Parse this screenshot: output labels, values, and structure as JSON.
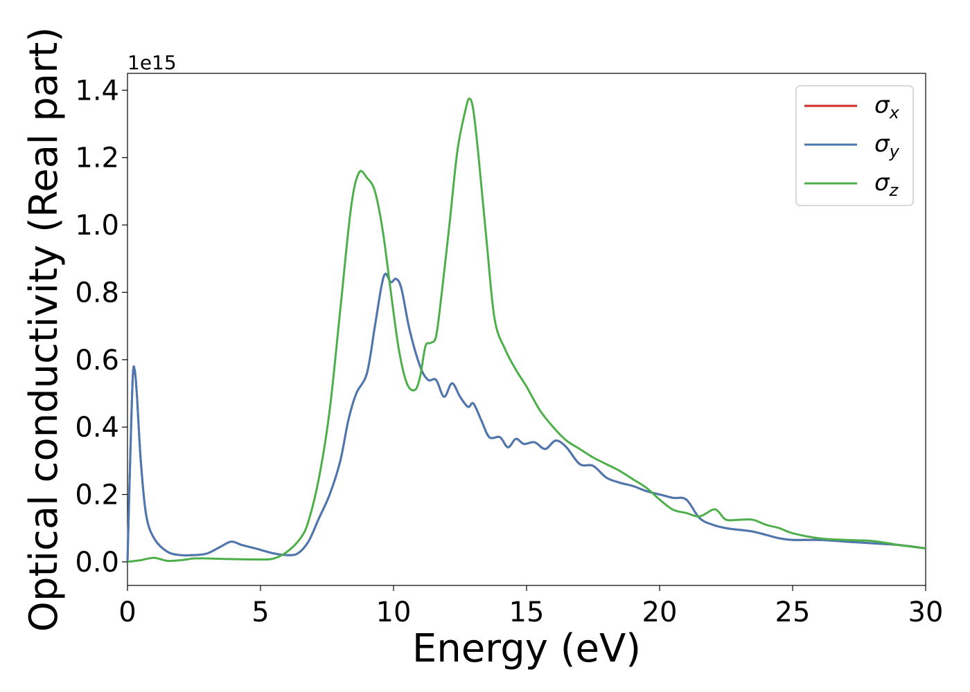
{
  "chart_data": {
    "type": "line",
    "xlabel": "Energy (eV)",
    "ylabel": "Optical conductivity (Real part)",
    "y_offset_label": "1e15",
    "xlim": [
      0,
      30
    ],
    "ylim": [
      -0.07,
      1.45
    ],
    "x_ticks": [
      0,
      5,
      10,
      15,
      20,
      25,
      30
    ],
    "x_tick_labels": [
      "0",
      "5",
      "10",
      "15",
      "20",
      "25",
      "30"
    ],
    "y_ticks": [
      0.0,
      0.2,
      0.4,
      0.6,
      0.8,
      1.0,
      1.2,
      1.4
    ],
    "y_tick_labels": [
      "0.0",
      "0.2",
      "0.4",
      "0.6",
      "0.8",
      "1.0",
      "1.2",
      "1.4"
    ],
    "grid": false,
    "legend_position": "top-right",
    "colors": {
      "sigma_x": "#d62728",
      "sigma_y": "#4a78b0",
      "sigma_z": "#4daf4a",
      "axes": "#000000"
    },
    "series": [
      {
        "key": "sigma_x",
        "legend_base": "σ",
        "legend_sub": "x",
        "color": "#d62728",
        "points": [
          [
            0,
            0
          ],
          [
            0.1,
            0.3
          ],
          [
            0.2,
            0.55
          ],
          [
            0.27,
            0.57
          ],
          [
            0.35,
            0.5
          ],
          [
            0.5,
            0.3
          ],
          [
            0.7,
            0.14
          ],
          [
            1.0,
            0.07
          ],
          [
            1.5,
            0.03
          ],
          [
            2.0,
            0.02
          ],
          [
            2.5,
            0.02
          ],
          [
            3.0,
            0.025
          ],
          [
            3.5,
            0.045
          ],
          [
            3.9,
            0.06
          ],
          [
            4.3,
            0.05
          ],
          [
            4.8,
            0.04
          ],
          [
            5.5,
            0.025
          ],
          [
            6.0,
            0.02
          ],
          [
            6.4,
            0.025
          ],
          [
            6.8,
            0.06
          ],
          [
            7.2,
            0.13
          ],
          [
            7.6,
            0.2
          ],
          [
            8.0,
            0.3
          ],
          [
            8.3,
            0.42
          ],
          [
            8.6,
            0.5
          ],
          [
            9.0,
            0.56
          ],
          [
            9.3,
            0.7
          ],
          [
            9.55,
            0.82
          ],
          [
            9.7,
            0.855
          ],
          [
            9.9,
            0.83
          ],
          [
            10.1,
            0.84
          ],
          [
            10.3,
            0.81
          ],
          [
            10.6,
            0.69
          ],
          [
            11.0,
            0.58
          ],
          [
            11.3,
            0.54
          ],
          [
            11.6,
            0.54
          ],
          [
            11.9,
            0.49
          ],
          [
            12.2,
            0.53
          ],
          [
            12.5,
            0.49
          ],
          [
            12.8,
            0.46
          ],
          [
            13.0,
            0.47
          ],
          [
            13.3,
            0.42
          ],
          [
            13.6,
            0.37
          ],
          [
            14.0,
            0.37
          ],
          [
            14.3,
            0.34
          ],
          [
            14.6,
            0.365
          ],
          [
            14.9,
            0.35
          ],
          [
            15.3,
            0.355
          ],
          [
            15.7,
            0.335
          ],
          [
            16.1,
            0.36
          ],
          [
            16.5,
            0.34
          ],
          [
            17.0,
            0.29
          ],
          [
            17.5,
            0.285
          ],
          [
            18.0,
            0.25
          ],
          [
            18.5,
            0.235
          ],
          [
            19.0,
            0.225
          ],
          [
            19.5,
            0.21
          ],
          [
            20.0,
            0.2
          ],
          [
            20.5,
            0.19
          ],
          [
            21.0,
            0.185
          ],
          [
            21.5,
            0.13
          ],
          [
            22.0,
            0.11
          ],
          [
            22.5,
            0.1
          ],
          [
            23.0,
            0.095
          ],
          [
            23.5,
            0.09
          ],
          [
            24.0,
            0.08
          ],
          [
            24.5,
            0.07
          ],
          [
            25.0,
            0.065
          ],
          [
            26.0,
            0.065
          ],
          [
            27.0,
            0.06
          ],
          [
            28.0,
            0.055
          ],
          [
            29.0,
            0.05
          ],
          [
            30.0,
            0.04
          ]
        ]
      },
      {
        "key": "sigma_y",
        "legend_base": "σ",
        "legend_sub": "y",
        "color": "#4a78b0",
        "points": [
          [
            0,
            0
          ],
          [
            0.1,
            0.3
          ],
          [
            0.2,
            0.55
          ],
          [
            0.27,
            0.57
          ],
          [
            0.35,
            0.5
          ],
          [
            0.5,
            0.3
          ],
          [
            0.7,
            0.14
          ],
          [
            1.0,
            0.07
          ],
          [
            1.5,
            0.03
          ],
          [
            2.0,
            0.02
          ],
          [
            2.5,
            0.02
          ],
          [
            3.0,
            0.025
          ],
          [
            3.5,
            0.045
          ],
          [
            3.9,
            0.06
          ],
          [
            4.3,
            0.05
          ],
          [
            4.8,
            0.04
          ],
          [
            5.5,
            0.025
          ],
          [
            6.0,
            0.02
          ],
          [
            6.4,
            0.025
          ],
          [
            6.8,
            0.06
          ],
          [
            7.2,
            0.13
          ],
          [
            7.6,
            0.2
          ],
          [
            8.0,
            0.3
          ],
          [
            8.3,
            0.42
          ],
          [
            8.6,
            0.5
          ],
          [
            9.0,
            0.56
          ],
          [
            9.3,
            0.7
          ],
          [
            9.55,
            0.82
          ],
          [
            9.7,
            0.855
          ],
          [
            9.9,
            0.83
          ],
          [
            10.1,
            0.84
          ],
          [
            10.3,
            0.81
          ],
          [
            10.6,
            0.69
          ],
          [
            11.0,
            0.58
          ],
          [
            11.3,
            0.54
          ],
          [
            11.6,
            0.54
          ],
          [
            11.9,
            0.49
          ],
          [
            12.2,
            0.53
          ],
          [
            12.5,
            0.49
          ],
          [
            12.8,
            0.46
          ],
          [
            13.0,
            0.47
          ],
          [
            13.3,
            0.42
          ],
          [
            13.6,
            0.37
          ],
          [
            14.0,
            0.37
          ],
          [
            14.3,
            0.34
          ],
          [
            14.6,
            0.365
          ],
          [
            14.9,
            0.35
          ],
          [
            15.3,
            0.355
          ],
          [
            15.7,
            0.335
          ],
          [
            16.1,
            0.36
          ],
          [
            16.5,
            0.34
          ],
          [
            17.0,
            0.29
          ],
          [
            17.5,
            0.285
          ],
          [
            18.0,
            0.25
          ],
          [
            18.5,
            0.235
          ],
          [
            19.0,
            0.225
          ],
          [
            19.5,
            0.21
          ],
          [
            20.0,
            0.2
          ],
          [
            20.5,
            0.19
          ],
          [
            21.0,
            0.185
          ],
          [
            21.5,
            0.13
          ],
          [
            22.0,
            0.11
          ],
          [
            22.5,
            0.1
          ],
          [
            23.0,
            0.095
          ],
          [
            23.5,
            0.09
          ],
          [
            24.0,
            0.08
          ],
          [
            24.5,
            0.07
          ],
          [
            25.0,
            0.065
          ],
          [
            26.0,
            0.065
          ],
          [
            27.0,
            0.06
          ],
          [
            28.0,
            0.055
          ],
          [
            29.0,
            0.05
          ],
          [
            30.0,
            0.04
          ]
        ]
      },
      {
        "key": "sigma_z",
        "legend_base": "σ",
        "legend_sub": "z",
        "color": "#4daf4a",
        "points": [
          [
            0,
            0
          ],
          [
            0.5,
            0.005
          ],
          [
            1.0,
            0.012
          ],
          [
            1.5,
            0.003
          ],
          [
            2.0,
            0.005
          ],
          [
            2.5,
            0.01
          ],
          [
            3.0,
            0.01
          ],
          [
            4.0,
            0.008
          ],
          [
            5.0,
            0.007
          ],
          [
            5.5,
            0.01
          ],
          [
            6.0,
            0.03
          ],
          [
            6.5,
            0.07
          ],
          [
            6.8,
            0.12
          ],
          [
            7.2,
            0.25
          ],
          [
            7.6,
            0.45
          ],
          [
            8.0,
            0.75
          ],
          [
            8.4,
            1.05
          ],
          [
            8.7,
            1.155
          ],
          [
            9.0,
            1.14
          ],
          [
            9.3,
            1.1
          ],
          [
            9.6,
            0.98
          ],
          [
            9.9,
            0.8
          ],
          [
            10.2,
            0.63
          ],
          [
            10.5,
            0.53
          ],
          [
            10.8,
            0.51
          ],
          [
            11.0,
            0.55
          ],
          [
            11.2,
            0.64
          ],
          [
            11.4,
            0.65
          ],
          [
            11.6,
            0.67
          ],
          [
            11.8,
            0.79
          ],
          [
            12.1,
            1.0
          ],
          [
            12.4,
            1.22
          ],
          [
            12.7,
            1.34
          ],
          [
            12.85,
            1.375
          ],
          [
            13.0,
            1.34
          ],
          [
            13.2,
            1.2
          ],
          [
            13.5,
            0.95
          ],
          [
            13.8,
            0.72
          ],
          [
            14.2,
            0.63
          ],
          [
            14.6,
            0.57
          ],
          [
            15.0,
            0.52
          ],
          [
            15.5,
            0.45
          ],
          [
            16.0,
            0.4
          ],
          [
            16.5,
            0.36
          ],
          [
            17.0,
            0.335
          ],
          [
            17.5,
            0.31
          ],
          [
            18.0,
            0.29
          ],
          [
            18.5,
            0.27
          ],
          [
            19.0,
            0.245
          ],
          [
            19.5,
            0.22
          ],
          [
            20.0,
            0.185
          ],
          [
            20.5,
            0.155
          ],
          [
            21.0,
            0.145
          ],
          [
            21.5,
            0.135
          ],
          [
            22.0,
            0.155
          ],
          [
            22.2,
            0.15
          ],
          [
            22.5,
            0.125
          ],
          [
            23.0,
            0.125
          ],
          [
            23.5,
            0.125
          ],
          [
            24.0,
            0.11
          ],
          [
            24.5,
            0.1
          ],
          [
            25.0,
            0.085
          ],
          [
            26.0,
            0.07
          ],
          [
            27.0,
            0.065
          ],
          [
            28.0,
            0.062
          ],
          [
            29.0,
            0.05
          ],
          [
            30.0,
            0.04
          ]
        ]
      }
    ]
  }
}
